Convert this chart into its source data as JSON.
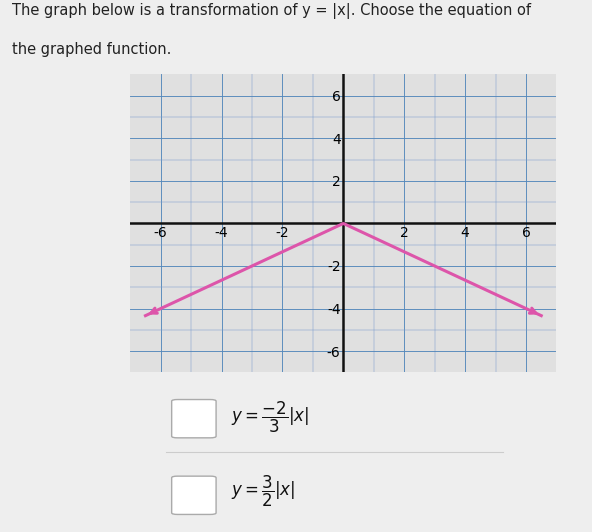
{
  "background_color": "#eeeeee",
  "plot_bg_color": "#e0e0e0",
  "grid_color_major": "#5588bb",
  "grid_color_minor": "#7799cc",
  "axis_color": "#111111",
  "curve_color": "#dd55aa",
  "curve_linewidth": 2.2,
  "xlim": [
    -7,
    7
  ],
  "ylim": [
    -7,
    7
  ],
  "xticks": [
    -6,
    -4,
    -2,
    2,
    4,
    6
  ],
  "yticks": [
    -6,
    -4,
    -2,
    2,
    4,
    6
  ],
  "tick_fontsize": 8.5,
  "title_line1": "The graph below is a transformation of y = |x|. Choose the equation of",
  "title_line2": "the graphed function.",
  "title_fontsize": 10.5,
  "slope": -0.6667
}
